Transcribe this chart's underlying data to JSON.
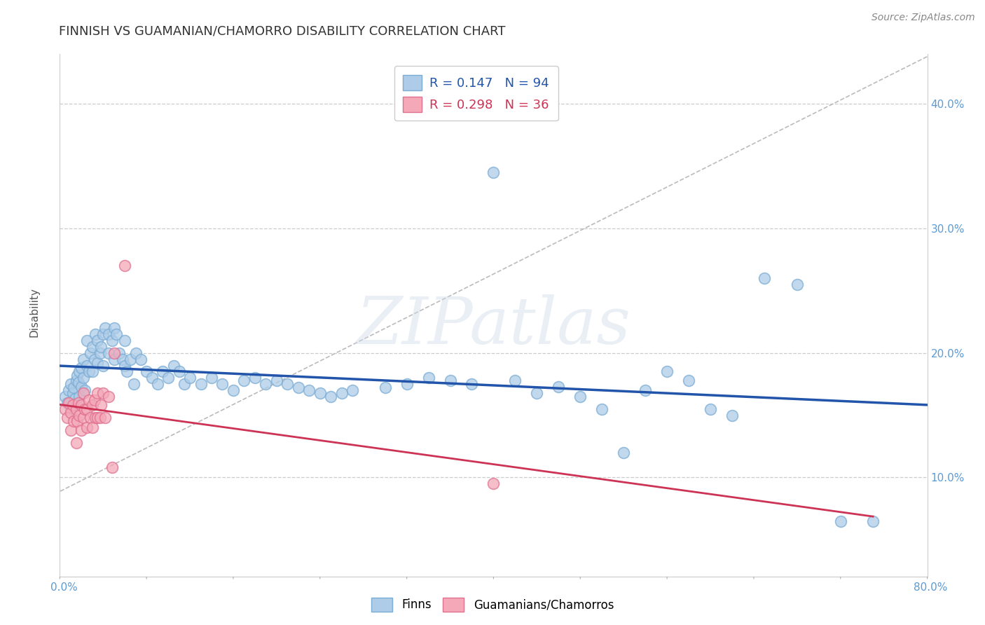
{
  "title": "FINNISH VS GUAMANIAN/CHAMORRO DISABILITY CORRELATION CHART",
  "source_text": "Source: ZipAtlas.com",
  "ylabel": "Disability",
  "xlim": [
    0.0,
    0.8
  ],
  "ylim": [
    0.02,
    0.44
  ],
  "yticks": [
    0.1,
    0.2,
    0.3,
    0.4
  ],
  "yticklabels": [
    "10.0%",
    "20.0%",
    "30.0%",
    "40.0%"
  ],
  "grid_color": "#cccccc",
  "background_color": "#ffffff",
  "finn_color": "#aecce8",
  "finn_edge_color": "#7aacd4",
  "guam_color": "#f4a8b8",
  "guam_edge_color": "#e07090",
  "finn_R": 0.147,
  "finn_N": 94,
  "guam_R": 0.298,
  "guam_N": 36,
  "finn_line_color": "#2255aa",
  "guam_line_color": "#cc3355",
  "dash_line_color": "#bbbbbb",
  "legend_label_finn": "Finns",
  "legend_label_guam": "Guamanians/Chamorros",
  "watermark": "ZIPatlas",
  "finn_x": [
    0.005,
    0.007,
    0.008,
    0.01,
    0.01,
    0.012,
    0.013,
    0.014,
    0.015,
    0.015,
    0.016,
    0.017,
    0.018,
    0.018,
    0.02,
    0.02,
    0.022,
    0.022,
    0.023,
    0.025,
    0.025,
    0.027,
    0.028,
    0.03,
    0.03,
    0.032,
    0.033,
    0.035,
    0.035,
    0.037,
    0.038,
    0.04,
    0.04,
    0.042,
    0.045,
    0.045,
    0.048,
    0.05,
    0.05,
    0.052,
    0.055,
    0.058,
    0.06,
    0.06,
    0.062,
    0.065,
    0.068,
    0.07,
    0.075,
    0.08,
    0.085,
    0.09,
    0.095,
    0.1,
    0.105,
    0.11,
    0.115,
    0.12,
    0.13,
    0.14,
    0.15,
    0.16,
    0.17,
    0.18,
    0.19,
    0.2,
    0.21,
    0.22,
    0.23,
    0.24,
    0.25,
    0.26,
    0.27,
    0.3,
    0.32,
    0.34,
    0.36,
    0.38,
    0.4,
    0.42,
    0.44,
    0.46,
    0.48,
    0.5,
    0.52,
    0.54,
    0.56,
    0.58,
    0.6,
    0.62,
    0.65,
    0.68,
    0.72,
    0.75
  ],
  "finn_y": [
    0.165,
    0.16,
    0.17,
    0.175,
    0.155,
    0.168,
    0.172,
    0.163,
    0.158,
    0.178,
    0.182,
    0.176,
    0.165,
    0.185,
    0.173,
    0.188,
    0.18,
    0.195,
    0.17,
    0.19,
    0.21,
    0.185,
    0.2,
    0.185,
    0.205,
    0.195,
    0.215,
    0.192,
    0.21,
    0.2,
    0.205,
    0.215,
    0.19,
    0.22,
    0.215,
    0.2,
    0.21,
    0.22,
    0.195,
    0.215,
    0.2,
    0.195,
    0.19,
    0.21,
    0.185,
    0.195,
    0.175,
    0.2,
    0.195,
    0.185,
    0.18,
    0.175,
    0.185,
    0.18,
    0.19,
    0.185,
    0.175,
    0.18,
    0.175,
    0.18,
    0.175,
    0.17,
    0.178,
    0.18,
    0.175,
    0.178,
    0.175,
    0.172,
    0.17,
    0.168,
    0.165,
    0.168,
    0.17,
    0.172,
    0.175,
    0.18,
    0.178,
    0.175,
    0.345,
    0.178,
    0.168,
    0.173,
    0.165,
    0.155,
    0.12,
    0.17,
    0.185,
    0.178,
    0.155,
    0.15,
    0.26,
    0.255,
    0.065,
    0.065
  ],
  "guam_x": [
    0.005,
    0.007,
    0.008,
    0.01,
    0.01,
    0.012,
    0.013,
    0.015,
    0.015,
    0.016,
    0.017,
    0.018,
    0.02,
    0.02,
    0.022,
    0.022,
    0.023,
    0.025,
    0.025,
    0.027,
    0.028,
    0.03,
    0.03,
    0.032,
    0.033,
    0.035,
    0.035,
    0.037,
    0.038,
    0.04,
    0.042,
    0.045,
    0.048,
    0.05,
    0.06,
    0.4
  ],
  "guam_y": [
    0.155,
    0.148,
    0.16,
    0.152,
    0.138,
    0.158,
    0.145,
    0.155,
    0.128,
    0.145,
    0.16,
    0.15,
    0.158,
    0.138,
    0.168,
    0.148,
    0.155,
    0.155,
    0.14,
    0.162,
    0.148,
    0.158,
    0.14,
    0.162,
    0.148,
    0.168,
    0.148,
    0.148,
    0.158,
    0.168,
    0.148,
    0.165,
    0.108,
    0.2,
    0.27,
    0.095
  ]
}
